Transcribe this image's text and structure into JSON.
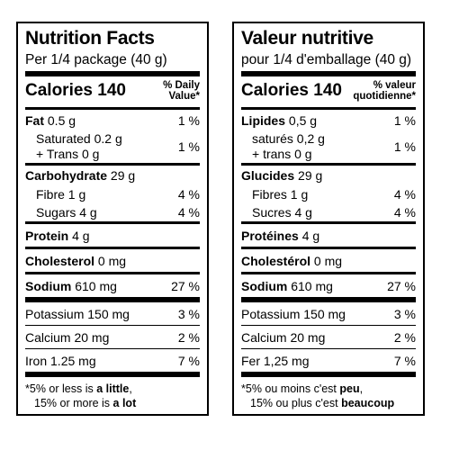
{
  "english": {
    "title": "Nutrition Facts",
    "serving": "Per 1/4 package (40 g)",
    "calories_label": "Calories",
    "calories_value": "140",
    "dv_line1": "% Daily",
    "dv_line2": "Value*",
    "fat_label": "Fat",
    "fat_amount": " 0.5 g",
    "fat_dv": "1 %",
    "saturated": "Saturated 0.2 g",
    "trans": "+ Trans 0 g",
    "sat_trans_dv": "1 %",
    "carb_label": "Carbohydrate",
    "carb_amount": " 29 g",
    "fibre": "Fibre 1 g",
    "fibre_dv": "4 %",
    "sugars": "Sugars 4 g",
    "sugars_dv": "4 %",
    "protein_label": "Protein",
    "protein_amount": " 4 g",
    "chol_label": "Cholesterol",
    "chol_amount": " 0 mg",
    "sodium_label": "Sodium",
    "sodium_amount": " 610 mg",
    "sodium_dv": "27 %",
    "potassium": "Potassium 150 mg",
    "potassium_dv": "3 %",
    "calcium": "Calcium 20 mg",
    "calcium_dv": "2 %",
    "iron": "Iron 1.25 mg",
    "iron_dv": "7 %",
    "foot1_a": "*5% or less is ",
    "foot1_b": "a little",
    "foot1_c": ",",
    "foot2_a": "15% or more is ",
    "foot2_b": "a lot"
  },
  "french": {
    "title": "Valeur nutritive",
    "serving": "pour 1/4 d'emballage (40 g)",
    "calories_label": "Calories",
    "calories_value": "140",
    "dv_line1": "% valeur",
    "dv_line2": "quotidienne*",
    "fat_label": "Lipides",
    "fat_amount": " 0,5 g",
    "fat_dv": "1 %",
    "saturated": "saturés 0,2 g",
    "trans": "+ trans 0 g",
    "sat_trans_dv": "1 %",
    "carb_label": "Glucides",
    "carb_amount": " 29 g",
    "fibre": "Fibres 1 g",
    "fibre_dv": "4 %",
    "sugars": "Sucres 4 g",
    "sugars_dv": "4 %",
    "protein_label": "Protéines",
    "protein_amount": " 4 g",
    "chol_label": "Cholestérol",
    "chol_amount": " 0 mg",
    "sodium_label": "Sodium",
    "sodium_amount": " 610 mg",
    "sodium_dv": "27 %",
    "potassium": "Potassium 150 mg",
    "potassium_dv": "3 %",
    "calcium": "Calcium 20 mg",
    "calcium_dv": "2 %",
    "iron": "Fer 1,25 mg",
    "iron_dv": "7 %",
    "foot1_a": "*5% ou moins c'est ",
    "foot1_b": "peu",
    "foot1_c": ",",
    "foot2_a": "15% ou plus c'est ",
    "foot2_b": "beaucoup"
  }
}
